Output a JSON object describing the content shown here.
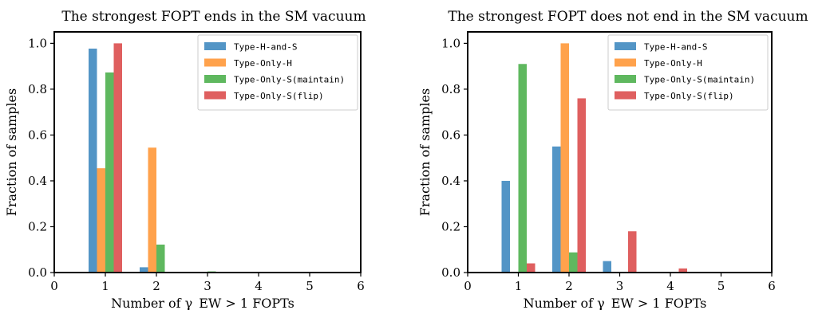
{
  "chart_data": [
    {
      "type": "bar",
      "title": "The strongest FOPT ends in the SM vacuum",
      "xlabel": "Number of γ_EW > 1 FOPTs",
      "ylabel": "Fraction of samples",
      "xlim": [
        0,
        6
      ],
      "ylim": [
        0,
        1.05
      ],
      "xticks": [
        "0",
        "1",
        "2",
        "3",
        "4",
        "5",
        "6"
      ],
      "yticks": [
        "0.0",
        "0.2",
        "0.4",
        "0.6",
        "0.8",
        "1.0"
      ],
      "categories": [
        1,
        2,
        3,
        4,
        5
      ],
      "legend_position": "top-right",
      "series": [
        {
          "name": "Type-H-and-S",
          "color": "#5395c6",
          "values": [
            0.977,
            0.023,
            0,
            0,
            0
          ]
        },
        {
          "name": "Type-Only-H",
          "color": "#ffa24c",
          "values": [
            0.455,
            0.545,
            0,
            0,
            0
          ]
        },
        {
          "name": "Type-Only-S(maintain)",
          "color": "#5fb85f",
          "values": [
            0.873,
            0.122,
            0.005,
            0,
            0
          ]
        },
        {
          "name": "Type-Only-S(flip)",
          "color": "#df5f5f",
          "values": [
            1.0,
            0,
            0,
            0,
            0
          ]
        }
      ]
    },
    {
      "type": "bar",
      "title": "The strongest FOPT does not end in the SM vacuum",
      "xlabel": "Number of γ_EW > 1 FOPTs",
      "ylabel": "Fraction of samples",
      "xlim": [
        0,
        6
      ],
      "ylim": [
        0,
        1.05
      ],
      "xticks": [
        "0",
        "1",
        "2",
        "3",
        "4",
        "5",
        "6"
      ],
      "yticks": [
        "0.0",
        "0.2",
        "0.4",
        "0.6",
        "0.8",
        "1.0"
      ],
      "categories": [
        1,
        2,
        3,
        4,
        5
      ],
      "legend_position": "top-right",
      "series": [
        {
          "name": "Type-H-and-S",
          "color": "#5395c6",
          "values": [
            0.4,
            0.55,
            0.05,
            0,
            0
          ]
        },
        {
          "name": "Type-Only-H",
          "color": "#ffa24c",
          "values": [
            0,
            1.0,
            0,
            0,
            0
          ]
        },
        {
          "name": "Type-Only-S(maintain)",
          "color": "#5fb85f",
          "values": [
            0.91,
            0.088,
            0,
            0,
            0
          ]
        },
        {
          "name": "Type-Only-S(flip)",
          "color": "#df5f5f",
          "values": [
            0.04,
            0.76,
            0.18,
            0.018,
            0
          ]
        }
      ]
    }
  ]
}
